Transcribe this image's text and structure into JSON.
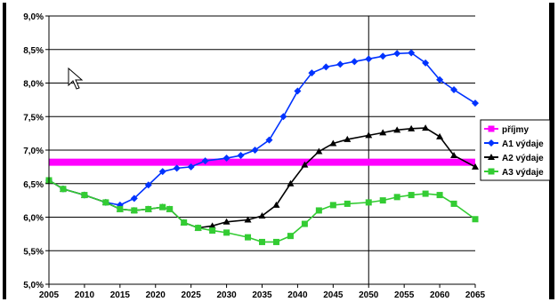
{
  "chart_data": {
    "type": "line",
    "title": "",
    "xlabel": "",
    "ylabel": "",
    "xlim": [
      2005,
      2065
    ],
    "ylim": [
      5.0,
      9.0
    ],
    "grid": "horizontal gridlines at every y tick; vertical reference line at 2050",
    "legend_position": "right",
    "x_ticks": [
      "2005",
      "2010",
      "2015",
      "2020",
      "2025",
      "2030",
      "2035",
      "2040",
      "2045",
      "2050",
      "2055",
      "2060",
      "2065"
    ],
    "y_ticks": [
      "5,0%",
      "5,5%",
      "6,0%",
      "6,5%",
      "7,0%",
      "7,5%",
      "8,0%",
      "8,5%",
      "9,0%"
    ],
    "vertical_reference_x": 2050,
    "series": [
      {
        "name": "příjmy",
        "color": "#ff00ff",
        "marker": "square",
        "x": [
          2005,
          2065
        ],
        "values": [
          6.82,
          6.82
        ]
      },
      {
        "name": "A1 výdaje",
        "color": "#0033ff",
        "marker": "diamond",
        "x": [
          2005,
          2007,
          2010,
          2013,
          2015,
          2017,
          2019,
          2021,
          2023,
          2025,
          2027,
          2030,
          2032,
          2034,
          2036,
          2038,
          2040,
          2042,
          2044,
          2046,
          2048,
          2050,
          2052,
          2054,
          2056,
          2058,
          2060,
          2062,
          2065
        ],
        "values": [
          6.55,
          6.42,
          6.33,
          6.22,
          6.18,
          6.28,
          6.48,
          6.68,
          6.73,
          6.75,
          6.84,
          6.88,
          6.92,
          7.0,
          7.15,
          7.5,
          7.88,
          8.15,
          8.24,
          8.28,
          8.32,
          8.36,
          8.4,
          8.44,
          8.45,
          8.3,
          8.05,
          7.9,
          7.7
        ]
      },
      {
        "name": "A2 výdaje",
        "color": "#000000",
        "marker": "triangle",
        "x": [
          2005,
          2007,
          2010,
          2013,
          2015,
          2017,
          2019,
          2021,
          2022,
          2024,
          2026,
          2028,
          2030,
          2033,
          2035,
          2037,
          2039,
          2041,
          2043,
          2045,
          2047,
          2050,
          2052,
          2054,
          2056,
          2058,
          2060,
          2062,
          2065
        ],
        "values": [
          6.55,
          6.42,
          6.33,
          6.22,
          6.12,
          6.1,
          6.12,
          6.15,
          6.12,
          5.92,
          5.84,
          5.87,
          5.93,
          5.96,
          6.02,
          6.18,
          6.5,
          6.78,
          6.98,
          7.1,
          7.16,
          7.22,
          7.26,
          7.3,
          7.32,
          7.33,
          7.2,
          6.92,
          6.75
        ]
      },
      {
        "name": "A3 výdaje",
        "color": "#33cc33",
        "marker": "square",
        "x": [
          2005,
          2007,
          2010,
          2013,
          2015,
          2017,
          2019,
          2021,
          2022,
          2024,
          2026,
          2028,
          2030,
          2033,
          2035,
          2037,
          2039,
          2041,
          2043,
          2045,
          2047,
          2050,
          2052,
          2054,
          2056,
          2058,
          2060,
          2062,
          2065
        ],
        "values": [
          6.55,
          6.42,
          6.33,
          6.22,
          6.12,
          6.1,
          6.12,
          6.15,
          6.12,
          5.92,
          5.84,
          5.8,
          5.77,
          5.7,
          5.63,
          5.63,
          5.72,
          5.9,
          6.1,
          6.18,
          6.2,
          6.22,
          6.25,
          6.3,
          6.33,
          6.35,
          6.33,
          6.2,
          5.97
        ]
      }
    ]
  }
}
